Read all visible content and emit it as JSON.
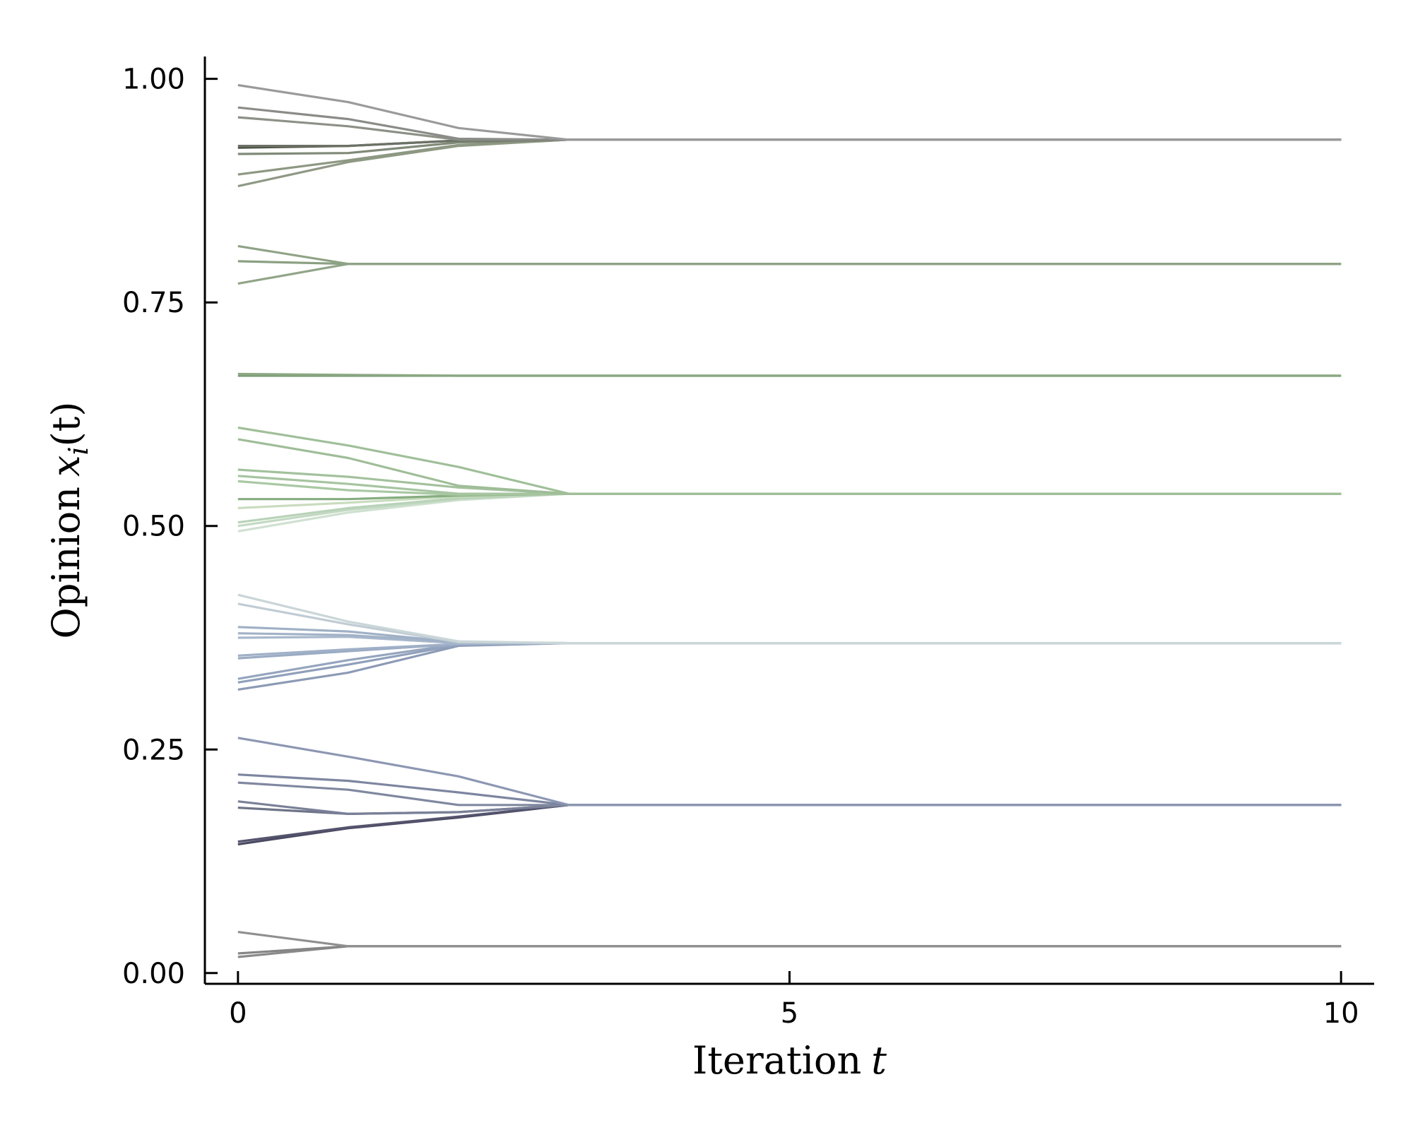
{
  "chart_data": {
    "type": "line",
    "title": "",
    "xlabel_parts": {
      "text": "Iteration",
      "math": "t"
    },
    "ylabel_parts": {
      "text": "Opinion",
      "math": "x",
      "sub": "i",
      "arg": "(t)"
    },
    "xlim": [
      -0.3,
      10.3
    ],
    "ylim": [
      -0.012,
      1.025
    ],
    "xticks": [
      0,
      5,
      10
    ],
    "xtick_labels": [
      "0",
      "5",
      "10"
    ],
    "yticks": [
      0.0,
      0.25,
      0.5,
      0.75,
      1.0
    ],
    "ytick_labels": [
      "0.00",
      "0.25",
      "0.50",
      "0.75",
      "1.00"
    ],
    "grid": false,
    "legend": "none",
    "x": [
      0,
      1,
      2,
      3,
      4,
      5,
      6,
      7,
      8,
      9,
      10
    ],
    "series": [
      {
        "color": "#8a8a8a",
        "values": [
          0.018,
          0.03,
          0.03,
          0.03,
          0.03,
          0.03,
          0.03,
          0.03,
          0.03,
          0.03,
          0.03
        ]
      },
      {
        "color": "#858585",
        "values": [
          0.022,
          0.03,
          0.03,
          0.03,
          0.03,
          0.03,
          0.03,
          0.03,
          0.03,
          0.03,
          0.03
        ]
      },
      {
        "color": "#8f8f8f",
        "values": [
          0.046,
          0.03,
          0.03,
          0.03,
          0.03,
          0.03,
          0.03,
          0.03,
          0.03,
          0.03,
          0.03
        ]
      },
      {
        "color": "#4a4a62",
        "values": [
          0.144,
          0.162,
          0.174,
          0.188,
          0.188,
          0.188,
          0.188,
          0.188,
          0.188,
          0.188,
          0.188
        ]
      },
      {
        "color": "#54546e",
        "values": [
          0.147,
          0.163,
          0.175,
          0.188,
          0.188,
          0.188,
          0.188,
          0.188,
          0.188,
          0.188,
          0.188
        ]
      },
      {
        "color": "#6e7488",
        "values": [
          0.185,
          0.178,
          0.18,
          0.188,
          0.188,
          0.188,
          0.188,
          0.188,
          0.188,
          0.188,
          0.188
        ]
      },
      {
        "color": "#7a8098",
        "values": [
          0.192,
          0.178,
          0.18,
          0.188,
          0.188,
          0.188,
          0.188,
          0.188,
          0.188,
          0.188,
          0.188
        ]
      },
      {
        "color": "#8088a0",
        "values": [
          0.213,
          0.205,
          0.188,
          0.188,
          0.188,
          0.188,
          0.188,
          0.188,
          0.188,
          0.188,
          0.188
        ]
      },
      {
        "color": "#7d86a0",
        "values": [
          0.222,
          0.215,
          0.202,
          0.188,
          0.188,
          0.188,
          0.188,
          0.188,
          0.188,
          0.188,
          0.188
        ]
      },
      {
        "color": "#8c97b2",
        "values": [
          0.263,
          0.242,
          0.22,
          0.188,
          0.188,
          0.188,
          0.188,
          0.188,
          0.188,
          0.188,
          0.188
        ]
      },
      {
        "color": "#8c9ab5",
        "values": [
          0.317,
          0.336,
          0.366,
          0.369,
          0.369,
          0.369,
          0.369,
          0.369,
          0.369,
          0.369,
          0.369
        ]
      },
      {
        "color": "#90a0bb",
        "values": [
          0.325,
          0.345,
          0.367,
          0.369,
          0.369,
          0.369,
          0.369,
          0.369,
          0.369,
          0.369,
          0.369
        ]
      },
      {
        "color": "#95a5bf",
        "values": [
          0.329,
          0.35,
          0.368,
          0.369,
          0.369,
          0.369,
          0.369,
          0.369,
          0.369,
          0.369,
          0.369
        ]
      },
      {
        "color": "#9aabc3",
        "values": [
          0.352,
          0.36,
          0.368,
          0.369,
          0.369,
          0.369,
          0.369,
          0.369,
          0.369,
          0.369,
          0.369
        ]
      },
      {
        "color": "#a0b0c8",
        "values": [
          0.355,
          0.362,
          0.368,
          0.369,
          0.369,
          0.369,
          0.369,
          0.369,
          0.369,
          0.369,
          0.369
        ]
      },
      {
        "color": "#a8b8cc",
        "values": [
          0.375,
          0.376,
          0.369,
          0.369,
          0.369,
          0.369,
          0.369,
          0.369,
          0.369,
          0.369,
          0.369
        ]
      },
      {
        "color": "#a2b2c8",
        "values": [
          0.38,
          0.378,
          0.37,
          0.369,
          0.369,
          0.369,
          0.369,
          0.369,
          0.369,
          0.369,
          0.369
        ]
      },
      {
        "color": "#9fb0c6",
        "values": [
          0.387,
          0.382,
          0.37,
          0.369,
          0.369,
          0.369,
          0.369,
          0.369,
          0.369,
          0.369,
          0.369
        ]
      },
      {
        "color": "#c0ccd4",
        "values": [
          0.413,
          0.39,
          0.37,
          0.369,
          0.369,
          0.369,
          0.369,
          0.369,
          0.369,
          0.369,
          0.369
        ]
      },
      {
        "color": "#cad6d8",
        "values": [
          0.423,
          0.393,
          0.371,
          0.369,
          0.369,
          0.369,
          0.369,
          0.369,
          0.369,
          0.369,
          0.369
        ]
      },
      {
        "color": "#cfe0d0",
        "values": [
          0.494,
          0.515,
          0.529,
          0.536,
          0.536,
          0.536,
          0.536,
          0.536,
          0.536,
          0.536,
          0.536
        ]
      },
      {
        "color": "#c4d9c4",
        "values": [
          0.5,
          0.518,
          0.53,
          0.536,
          0.536,
          0.536,
          0.536,
          0.536,
          0.536,
          0.536,
          0.536
        ]
      },
      {
        "color": "#b8d3b8",
        "values": [
          0.504,
          0.52,
          0.531,
          0.536,
          0.536,
          0.536,
          0.536,
          0.536,
          0.536,
          0.536,
          0.536
        ]
      },
      {
        "color": "#c9dcbe",
        "values": [
          0.52,
          0.526,
          0.533,
          0.536,
          0.536,
          0.536,
          0.536,
          0.536,
          0.536,
          0.536,
          0.536
        ]
      },
      {
        "color": "#86ad80",
        "values": [
          0.53,
          0.53,
          0.534,
          0.536,
          0.536,
          0.536,
          0.536,
          0.536,
          0.536,
          0.536,
          0.536
        ]
      },
      {
        "color": "#a9c8a3",
        "values": [
          0.55,
          0.54,
          0.535,
          0.536,
          0.536,
          0.536,
          0.536,
          0.536,
          0.536,
          0.536,
          0.536
        ]
      },
      {
        "color": "#a6c4a0",
        "values": [
          0.556,
          0.547,
          0.536,
          0.536,
          0.536,
          0.536,
          0.536,
          0.536,
          0.536,
          0.536,
          0.536
        ]
      },
      {
        "color": "#a3c19d",
        "values": [
          0.563,
          0.555,
          0.543,
          0.536,
          0.536,
          0.536,
          0.536,
          0.536,
          0.536,
          0.536,
          0.536
        ]
      },
      {
        "color": "#9fbd98",
        "values": [
          0.597,
          0.576,
          0.545,
          0.536,
          0.536,
          0.536,
          0.536,
          0.536,
          0.536,
          0.536,
          0.536
        ]
      },
      {
        "color": "#a0bf99",
        "values": [
          0.61,
          0.59,
          0.566,
          0.536,
          0.536,
          0.536,
          0.536,
          0.536,
          0.536,
          0.536,
          0.536
        ]
      },
      {
        "color": "#7e9c76",
        "values": [
          0.668,
          0.668,
          0.668,
          0.668,
          0.668,
          0.668,
          0.668,
          0.668,
          0.668,
          0.668,
          0.668
        ]
      },
      {
        "color": "#8aa882",
        "values": [
          0.67,
          0.669,
          0.668,
          0.668,
          0.668,
          0.668,
          0.668,
          0.668,
          0.668,
          0.668,
          0.668
        ]
      },
      {
        "color": "#91a588",
        "values": [
          0.771,
          0.793,
          0.793,
          0.793,
          0.793,
          0.793,
          0.793,
          0.793,
          0.793,
          0.793,
          0.793
        ]
      },
      {
        "color": "#8aa082",
        "values": [
          0.796,
          0.793,
          0.793,
          0.793,
          0.793,
          0.793,
          0.793,
          0.793,
          0.793,
          0.793,
          0.793
        ]
      },
      {
        "color": "#8fa386",
        "values": [
          0.813,
          0.793,
          0.793,
          0.793,
          0.793,
          0.793,
          0.793,
          0.793,
          0.793,
          0.793,
          0.793
        ]
      },
      {
        "color": "#8f9985",
        "values": [
          0.88,
          0.907,
          0.925,
          0.932,
          0.932,
          0.932,
          0.932,
          0.932,
          0.932,
          0.932,
          0.932
        ]
      },
      {
        "color": "#8d9882",
        "values": [
          0.893,
          0.909,
          0.926,
          0.932,
          0.932,
          0.932,
          0.932,
          0.932,
          0.932,
          0.932,
          0.932
        ]
      },
      {
        "color": "#808a78",
        "values": [
          0.916,
          0.917,
          0.929,
          0.932,
          0.932,
          0.932,
          0.932,
          0.932,
          0.932,
          0.932,
          0.932
        ]
      },
      {
        "color": "#4c5244",
        "values": [
          0.923,
          0.925,
          0.931,
          0.932,
          0.932,
          0.932,
          0.932,
          0.932,
          0.932,
          0.932,
          0.932
        ]
      },
      {
        "color": "#6c7266",
        "values": [
          0.925,
          0.925,
          0.931,
          0.932,
          0.932,
          0.932,
          0.932,
          0.932,
          0.932,
          0.932,
          0.932
        ]
      },
      {
        "color": "#8c9086",
        "values": [
          0.957,
          0.947,
          0.932,
          0.932,
          0.932,
          0.932,
          0.932,
          0.932,
          0.932,
          0.932,
          0.932
        ]
      },
      {
        "color": "#8a8c88",
        "values": [
          0.968,
          0.955,
          0.933,
          0.932,
          0.932,
          0.932,
          0.932,
          0.932,
          0.932,
          0.932,
          0.932
        ]
      },
      {
        "color": "#9a9a9a",
        "values": [
          0.993,
          0.974,
          0.945,
          0.932,
          0.932,
          0.932,
          0.932,
          0.932,
          0.932,
          0.932,
          0.932
        ]
      }
    ]
  }
}
